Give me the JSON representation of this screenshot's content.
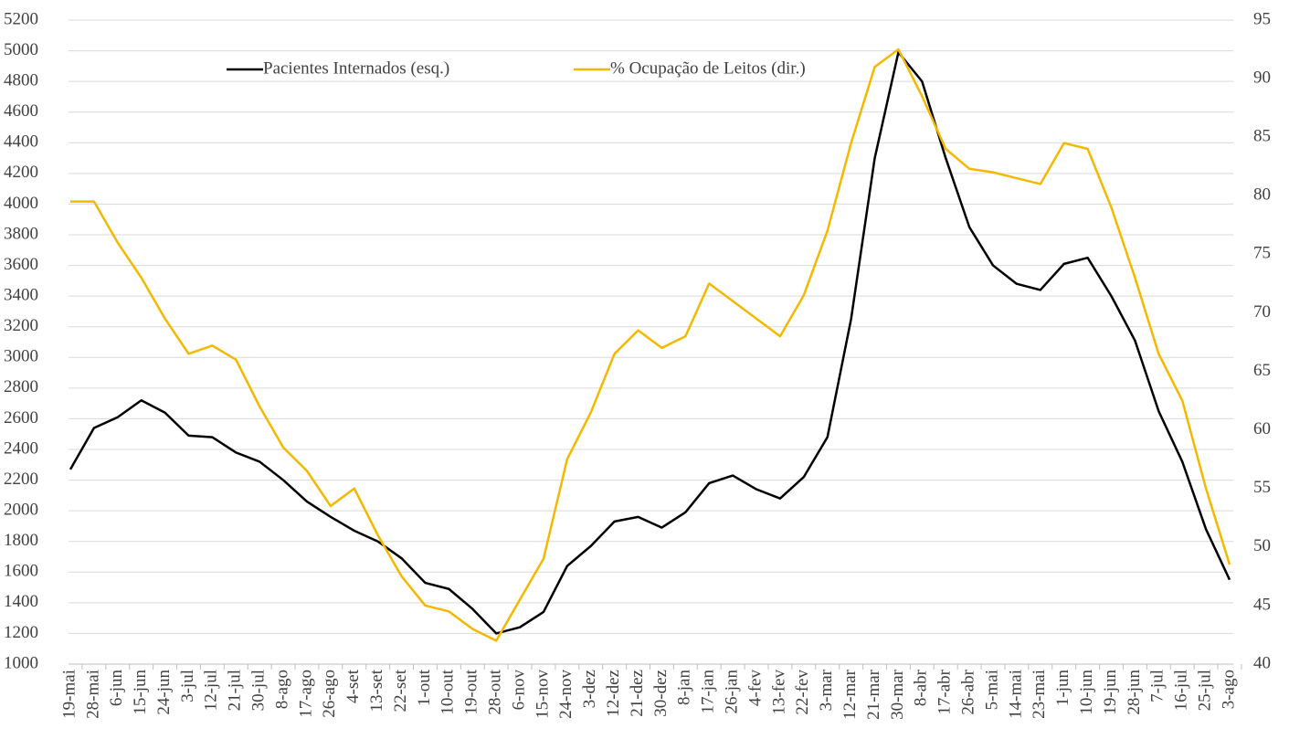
{
  "chart_data": {
    "type": "line",
    "categories": [
      "19-mai",
      "28-mai",
      "6-jun",
      "15-jun",
      "24-jun",
      "3-jul",
      "12-jul",
      "21-jul",
      "30-jul",
      "8-ago",
      "17-ago",
      "26-ago",
      "4-set",
      "13-set",
      "22-set",
      "1-out",
      "10-out",
      "19-out",
      "28-out",
      "6-nov",
      "15-nov",
      "24-nov",
      "3-dez",
      "12-dez",
      "21-dez",
      "30-dez",
      "8-jan",
      "17-jan",
      "26-jan",
      "4-fev",
      "13-fev",
      "22-fev",
      "3-mar",
      "12-mar",
      "21-mar",
      "30-mar",
      "8-abr",
      "17-abr",
      "26-abr",
      "5-mai",
      "14-mai",
      "23-mai",
      "1-jun",
      "10-jun",
      "19-jun",
      "28-jun",
      "7-jul",
      "16-jul",
      "25-jul",
      "3-ago"
    ],
    "series": [
      {
        "name": "Pacientes Internados (esq.)",
        "color": "#000000",
        "values": [
          2270,
          2540,
          2610,
          2720,
          2640,
          2490,
          2480,
          2380,
          2320,
          2200,
          2060,
          1960,
          1870,
          1800,
          1690,
          1530,
          1490,
          1360,
          1200,
          1240,
          1340,
          1640,
          1770,
          1930,
          1960,
          1890,
          1990,
          2180,
          2230,
          2140,
          2080,
          2220,
          2480,
          3250,
          4300,
          4990,
          4800,
          4300,
          3850,
          3600,
          3480,
          3440,
          3610,
          3650,
          3400,
          3110,
          2650,
          2320,
          1880,
          1550
        ]
      },
      {
        "name": "% Ocupação de Leitos (dir.)",
        "color": "#f5b800",
        "axis": "y2",
        "values": [
          79.5,
          79.5,
          76,
          73,
          69.5,
          66.5,
          67.2,
          66,
          62,
          58.5,
          56.5,
          53.5,
          55,
          51,
          47.5,
          45,
          44.5,
          43,
          42,
          45.5,
          49,
          57.5,
          61.5,
          66.5,
          68.5,
          67,
          68,
          72.5,
          71,
          69.5,
          68,
          71.5,
          77,
          84.5,
          91,
          92.5,
          88.5,
          84,
          82.3,
          82,
          81.5,
          81,
          84.5,
          84,
          79,
          73,
          66.5,
          62.5,
          55,
          48.5
        ]
      }
    ],
    "ylim": [
      1000,
      5200
    ],
    "yticks": [
      1000,
      1200,
      1400,
      1600,
      1800,
      2000,
      2200,
      2400,
      2600,
      2800,
      3000,
      3200,
      3400,
      3600,
      3800,
      4000,
      4200,
      4400,
      4600,
      4800,
      5000,
      5200
    ],
    "y2lim": [
      40,
      95
    ],
    "y2ticks": [
      40,
      45,
      50,
      55,
      60,
      65,
      70,
      75,
      80,
      85,
      90,
      95
    ],
    "grid": true
  }
}
